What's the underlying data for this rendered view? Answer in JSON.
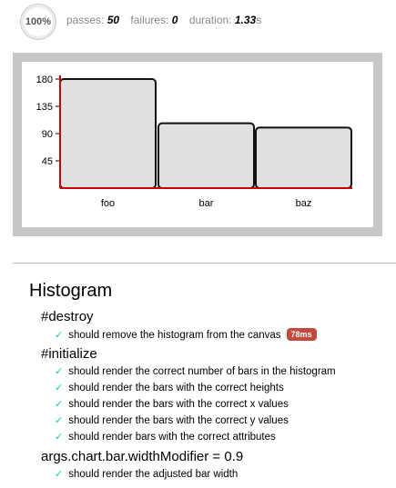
{
  "stats": {
    "progress": "100%",
    "passes_label": "passes:",
    "passes": "50",
    "failures_label": "failures:",
    "failures": "0",
    "duration_label": "duration:",
    "duration": "1.33",
    "duration_unit": "s"
  },
  "chart_data": {
    "type": "bar",
    "categories": [
      "foo",
      "bar",
      "baz"
    ],
    "values": [
      180,
      107,
      100
    ],
    "yticks": [
      45,
      90,
      135,
      180
    ],
    "ylim": [
      0,
      180
    ],
    "grid": false,
    "colors": {
      "bar_fill": "#e0e0e0",
      "bar_stroke": "#111111",
      "axis": "#cc0000"
    }
  },
  "report": {
    "suite_title": "Histogram",
    "groups": [
      {
        "title": "#destroy",
        "tests": [
          {
            "label": "should remove the histogram from the canvas",
            "duration": "78ms"
          }
        ]
      },
      {
        "title": "#initialize",
        "tests": [
          {
            "label": "should render the correct number of bars in the histogram"
          },
          {
            "label": "should render the bars with the correct heights"
          },
          {
            "label": "should render the bars with the correct x values"
          },
          {
            "label": "should render the bars with the correct y values"
          },
          {
            "label": "should render bars with the correct attributes"
          }
        ]
      },
      {
        "title": "args.chart.bar.widthModifier = 0.9",
        "tests": [
          {
            "label": "should render the adjusted bar width"
          }
        ]
      }
    ],
    "check_icon": "✓",
    "icon_name": "check-icon"
  }
}
